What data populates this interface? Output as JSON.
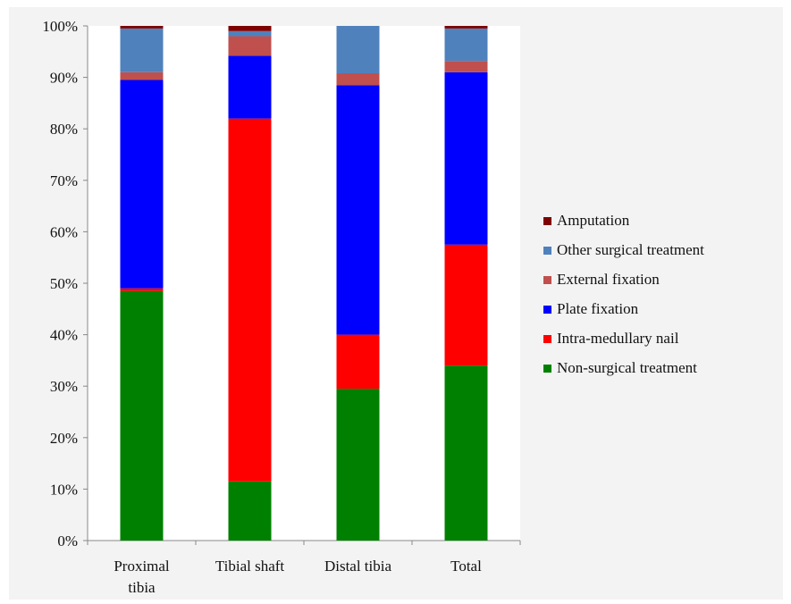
{
  "chart_data": {
    "type": "bar",
    "stacked": true,
    "categories": [
      "Proximal tibia",
      "Tibial shaft",
      "Distal tibia",
      "Total"
    ],
    "category_lines": [
      [
        "Proximal",
        "tibia"
      ],
      [
        "Tibial shaft"
      ],
      [
        "Distal tibia"
      ],
      [
        "Total"
      ]
    ],
    "series": [
      {
        "name": "Non-surgical treatment",
        "color": "#008000",
        "values": [
          48.5,
          11.5,
          29.5,
          34.0
        ]
      },
      {
        "name": "Intra-medullary nail",
        "color": "#ff0000",
        "values": [
          0.5,
          70.5,
          10.5,
          23.5
        ]
      },
      {
        "name": "Plate fixation",
        "color": "#0000ff",
        "values": [
          40.5,
          12.2,
          48.5,
          33.5
        ]
      },
      {
        "name": "External fixation",
        "color": "#c0504d",
        "values": [
          1.5,
          3.8,
          2.3,
          2.2
        ]
      },
      {
        "name": "Other surgical treatment",
        "color": "#4f81bd",
        "values": [
          8.5,
          1.0,
          9.2,
          6.3
        ]
      },
      {
        "name": "Amputation",
        "color": "#7f0000",
        "values": [
          0.5,
          1.0,
          0.0,
          0.5
        ]
      }
    ],
    "y_ticks": [
      "0%",
      "10%",
      "20%",
      "30%",
      "40%",
      "50%",
      "60%",
      "70%",
      "80%",
      "90%",
      "100%"
    ],
    "ylim": [
      0,
      100
    ],
    "grid": false,
    "legend_position": "right",
    "legend_order": [
      "Amputation",
      "Other surgical treatment",
      "External fixation",
      "Plate fixation",
      "Intra-medullary nail",
      "Non-surgical treatment"
    ]
  }
}
